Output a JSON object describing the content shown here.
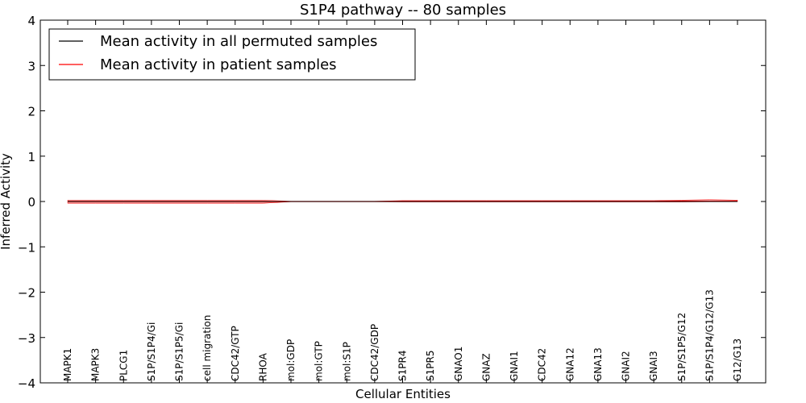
{
  "chart_data": {
    "type": "line",
    "title": "S1P4 pathway -- 80 samples",
    "xlabel": "Cellular Entities",
    "ylabel": "Inferred Activity",
    "ylim": [
      -4,
      4
    ],
    "yticks": [
      -4,
      -3,
      -2,
      -1,
      0,
      1,
      2,
      3,
      4
    ],
    "ytick_labels": [
      "−4",
      "−3",
      "−2",
      "−1",
      "0",
      "1",
      "2",
      "3",
      "4"
    ],
    "categories": [
      "MAPK1",
      "MAPK3",
      "PLCG1",
      "S1P/S1P4/Gi",
      "S1P/S1P5/Gi",
      "cell migration",
      "CDC42/GTP",
      "RHOA",
      "mol:GDP",
      "mol:GTP",
      "mol:S1P",
      "CDC42/GDP",
      "S1PR4",
      "S1PR5",
      "GNAO1",
      "GNAZ",
      "GNAI1",
      "CDC42",
      "GNA12",
      "GNA13",
      "GNAI2",
      "GNAI3",
      "S1P/S1P5/G12",
      "S1P/S1P4/G12/G13",
      "G12/G13"
    ],
    "series": [
      {
        "name": "Mean activity in all permuted samples",
        "color": "#000000",
        "values": [
          0,
          0,
          0,
          0,
          0,
          0,
          0,
          0,
          0,
          0,
          0,
          0,
          0,
          0,
          0,
          0,
          0,
          0,
          0,
          0,
          0,
          0,
          0,
          0,
          0
        ]
      },
      {
        "name": "Mean activity in patient samples",
        "color": "#ff0000",
        "values": [
          -0.01,
          -0.01,
          -0.01,
          -0.01,
          -0.01,
          -0.01,
          -0.01,
          -0.01,
          0.0,
          0.0,
          0.0,
          0.0,
          0.005,
          0.005,
          0.005,
          0.005,
          0.005,
          0.005,
          0.005,
          0.005,
          0.005,
          0.005,
          0.01,
          0.01,
          0.01
        ],
        "band_lower": [
          -0.04,
          -0.04,
          -0.04,
          -0.04,
          -0.04,
          -0.04,
          -0.04,
          -0.04,
          -0.005,
          -0.005,
          -0.005,
          -0.005,
          -0.01,
          -0.01,
          -0.01,
          -0.01,
          -0.01,
          -0.01,
          -0.01,
          -0.01,
          -0.01,
          -0.01,
          -0.01,
          -0.005,
          -0.005
        ],
        "band_upper": [
          0.03,
          0.03,
          0.03,
          0.03,
          0.03,
          0.03,
          0.03,
          0.03,
          0.005,
          0.005,
          0.005,
          0.005,
          0.02,
          0.02,
          0.02,
          0.02,
          0.02,
          0.02,
          0.02,
          0.02,
          0.02,
          0.02,
          0.03,
          0.04,
          0.03
        ],
        "band_color": "#f4a3a3"
      }
    ],
    "legend_location": "upper-left",
    "grid": false
  }
}
